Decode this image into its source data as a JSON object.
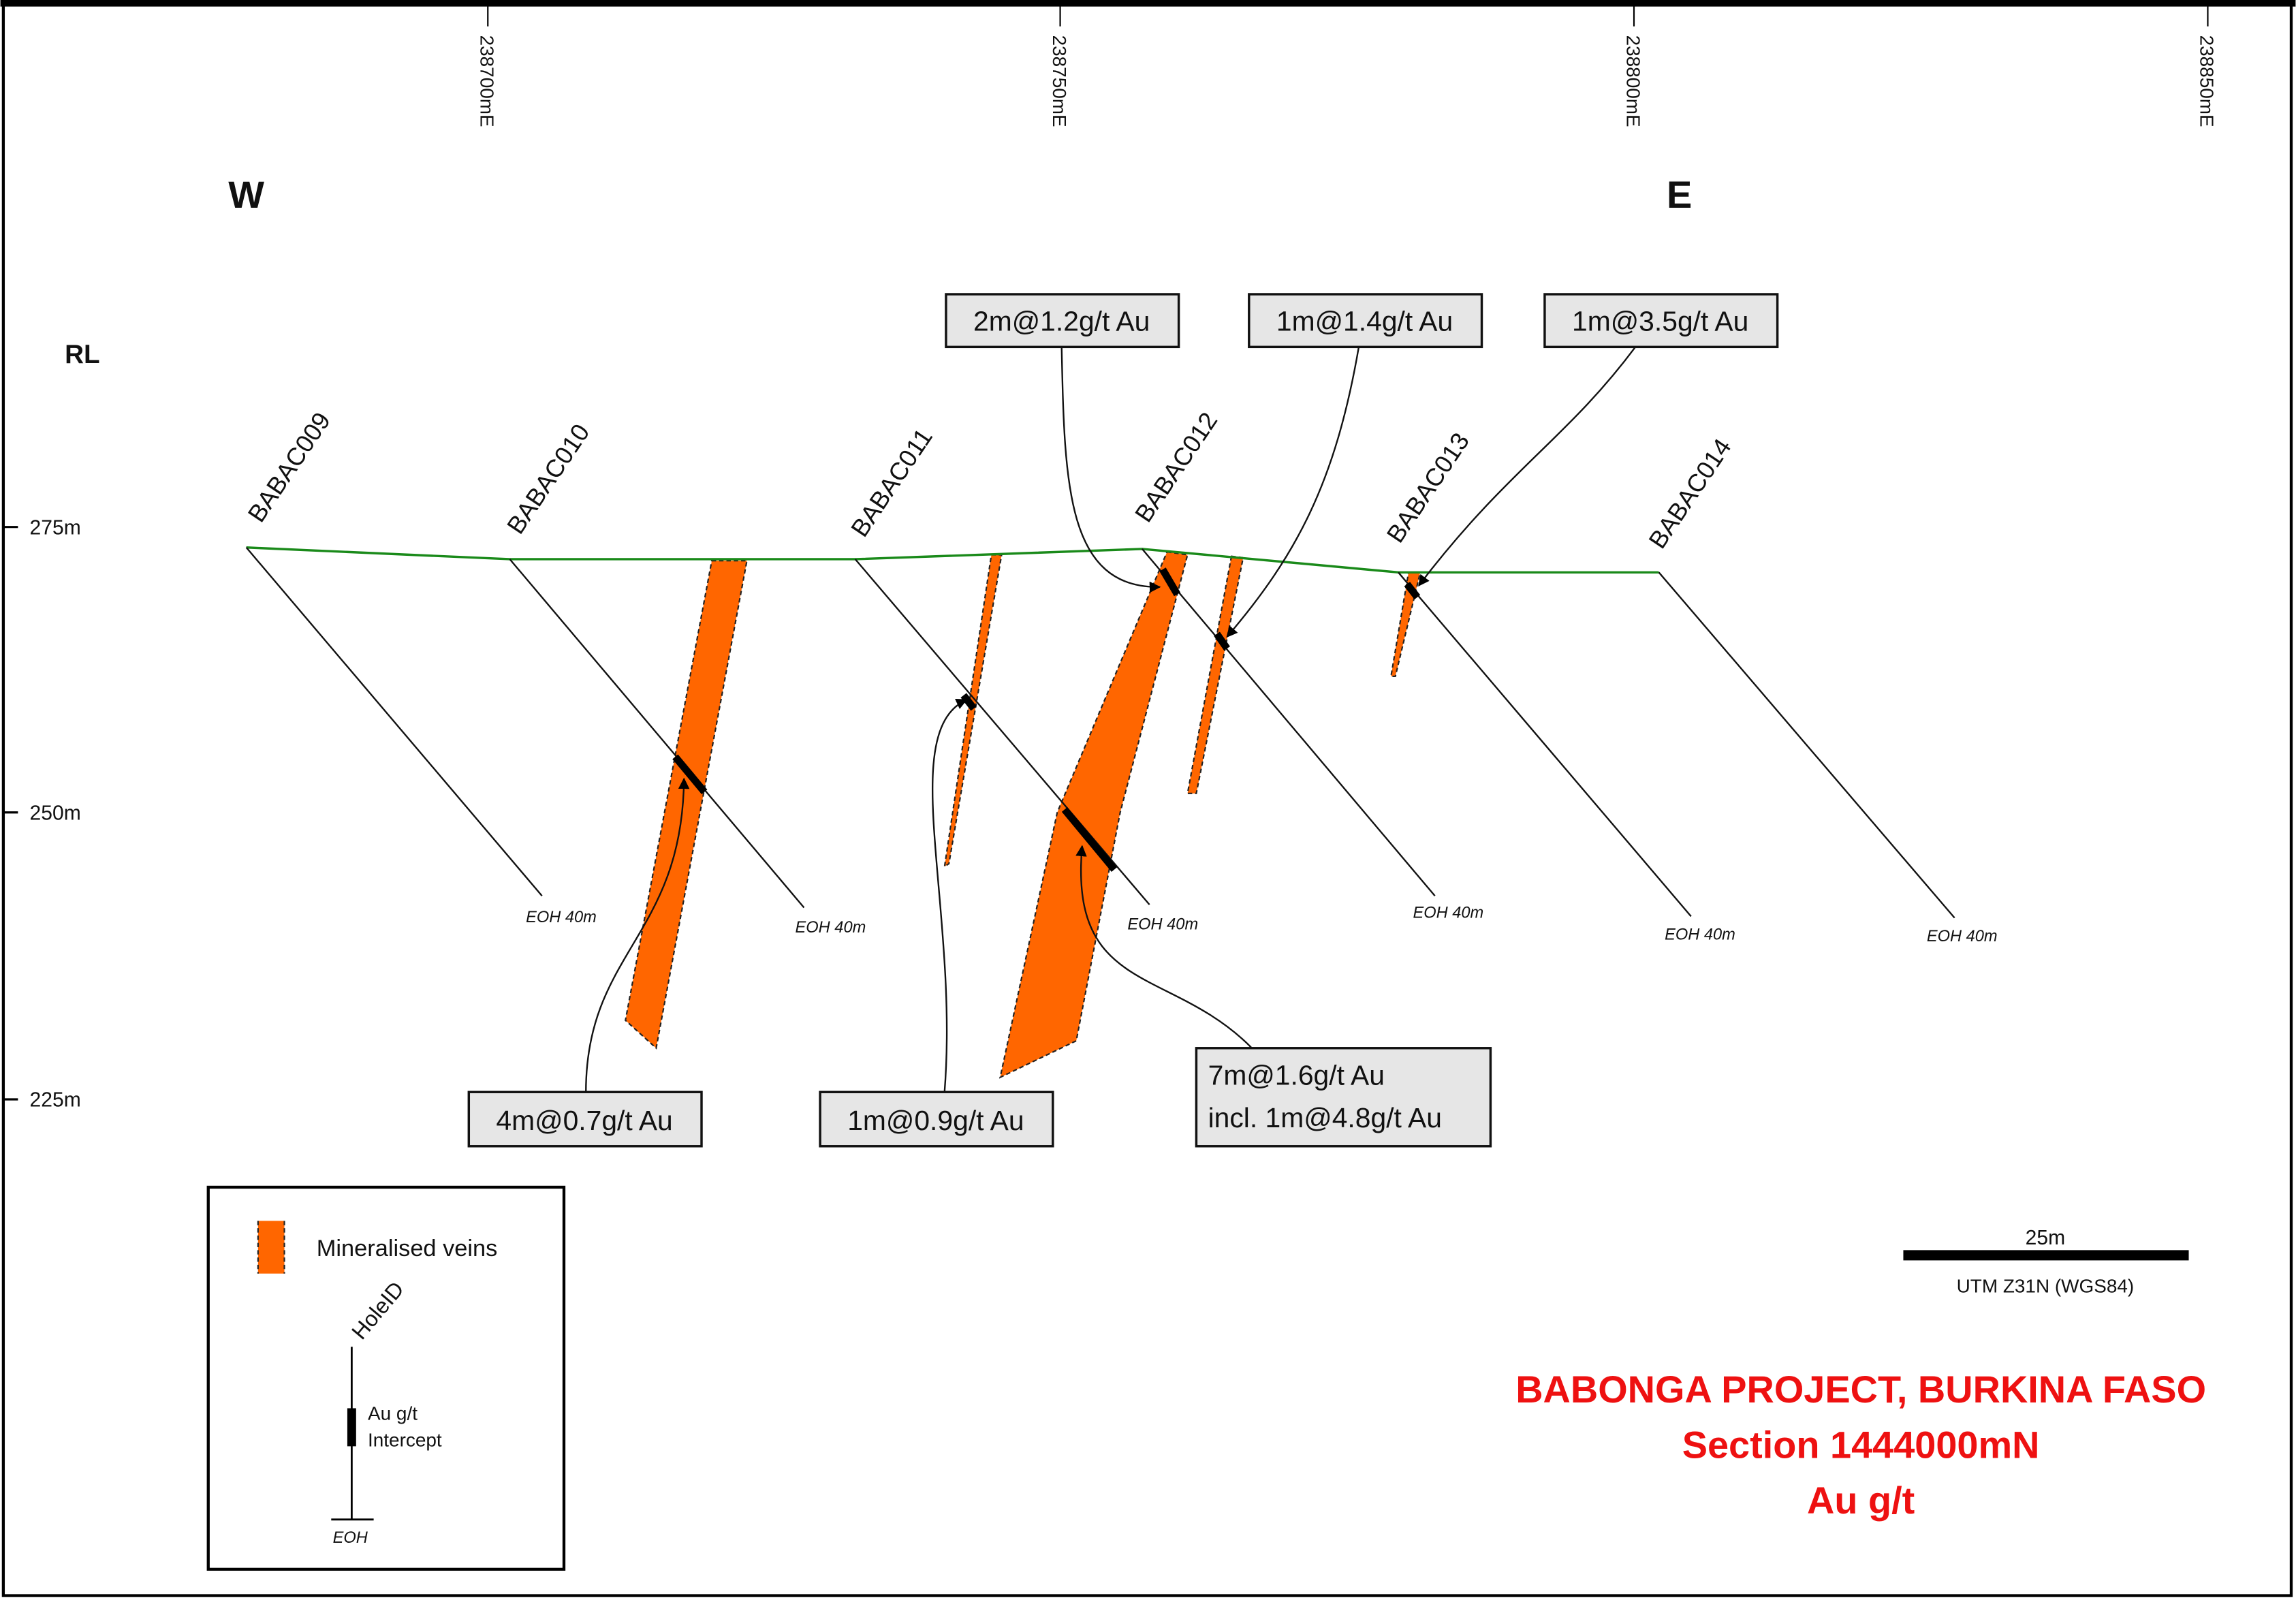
{
  "eastings": [
    "238700mE",
    "238750mE",
    "238800mE",
    "238850mE"
  ],
  "orientation": {
    "west": "W",
    "east": "E"
  },
  "rl": {
    "label": "RL",
    "ticks": [
      "275m",
      "250m",
      "225m"
    ]
  },
  "holes": [
    {
      "id": "BABAC009",
      "eoh": "EOH 40m"
    },
    {
      "id": "BABAC010",
      "eoh": "EOH 40m"
    },
    {
      "id": "BABAC011",
      "eoh": "EOH 40m"
    },
    {
      "id": "BABAC012",
      "eoh": "EOH 40m"
    },
    {
      "id": "BABAC013",
      "eoh": "EOH 40m"
    },
    {
      "id": "BABAC014",
      "eoh": "EOH 40m"
    }
  ],
  "intercepts": [
    {
      "text": "2m@1.2g/t Au"
    },
    {
      "text": "1m@1.4g/t Au"
    },
    {
      "text": "1m@3.5g/t Au"
    },
    {
      "text": "4m@0.7g/t Au"
    },
    {
      "text": "1m@0.9g/t Au"
    },
    {
      "text": "7m@1.6g/t Au",
      "text2": "incl. 1m@4.8g/t Au"
    }
  ],
  "legend": {
    "veins": "Mineralised veins",
    "hole_id": "HoleID",
    "intercept_line1": "Au g/t",
    "intercept_line2": "Intercept",
    "eoh": "EOH"
  },
  "scale": {
    "length": "25m",
    "projection": "UTM Z31N (WGS84)"
  },
  "title": {
    "line1": "BABONGA PROJECT, BURKINA FASO",
    "line2": "Section 1444000mN",
    "line3": "Au g/t"
  },
  "colors": {
    "vein": "#ff6600",
    "surface": "#1a8a1a",
    "title": "#ee1111",
    "callout_fill": "#e6e6e6"
  }
}
